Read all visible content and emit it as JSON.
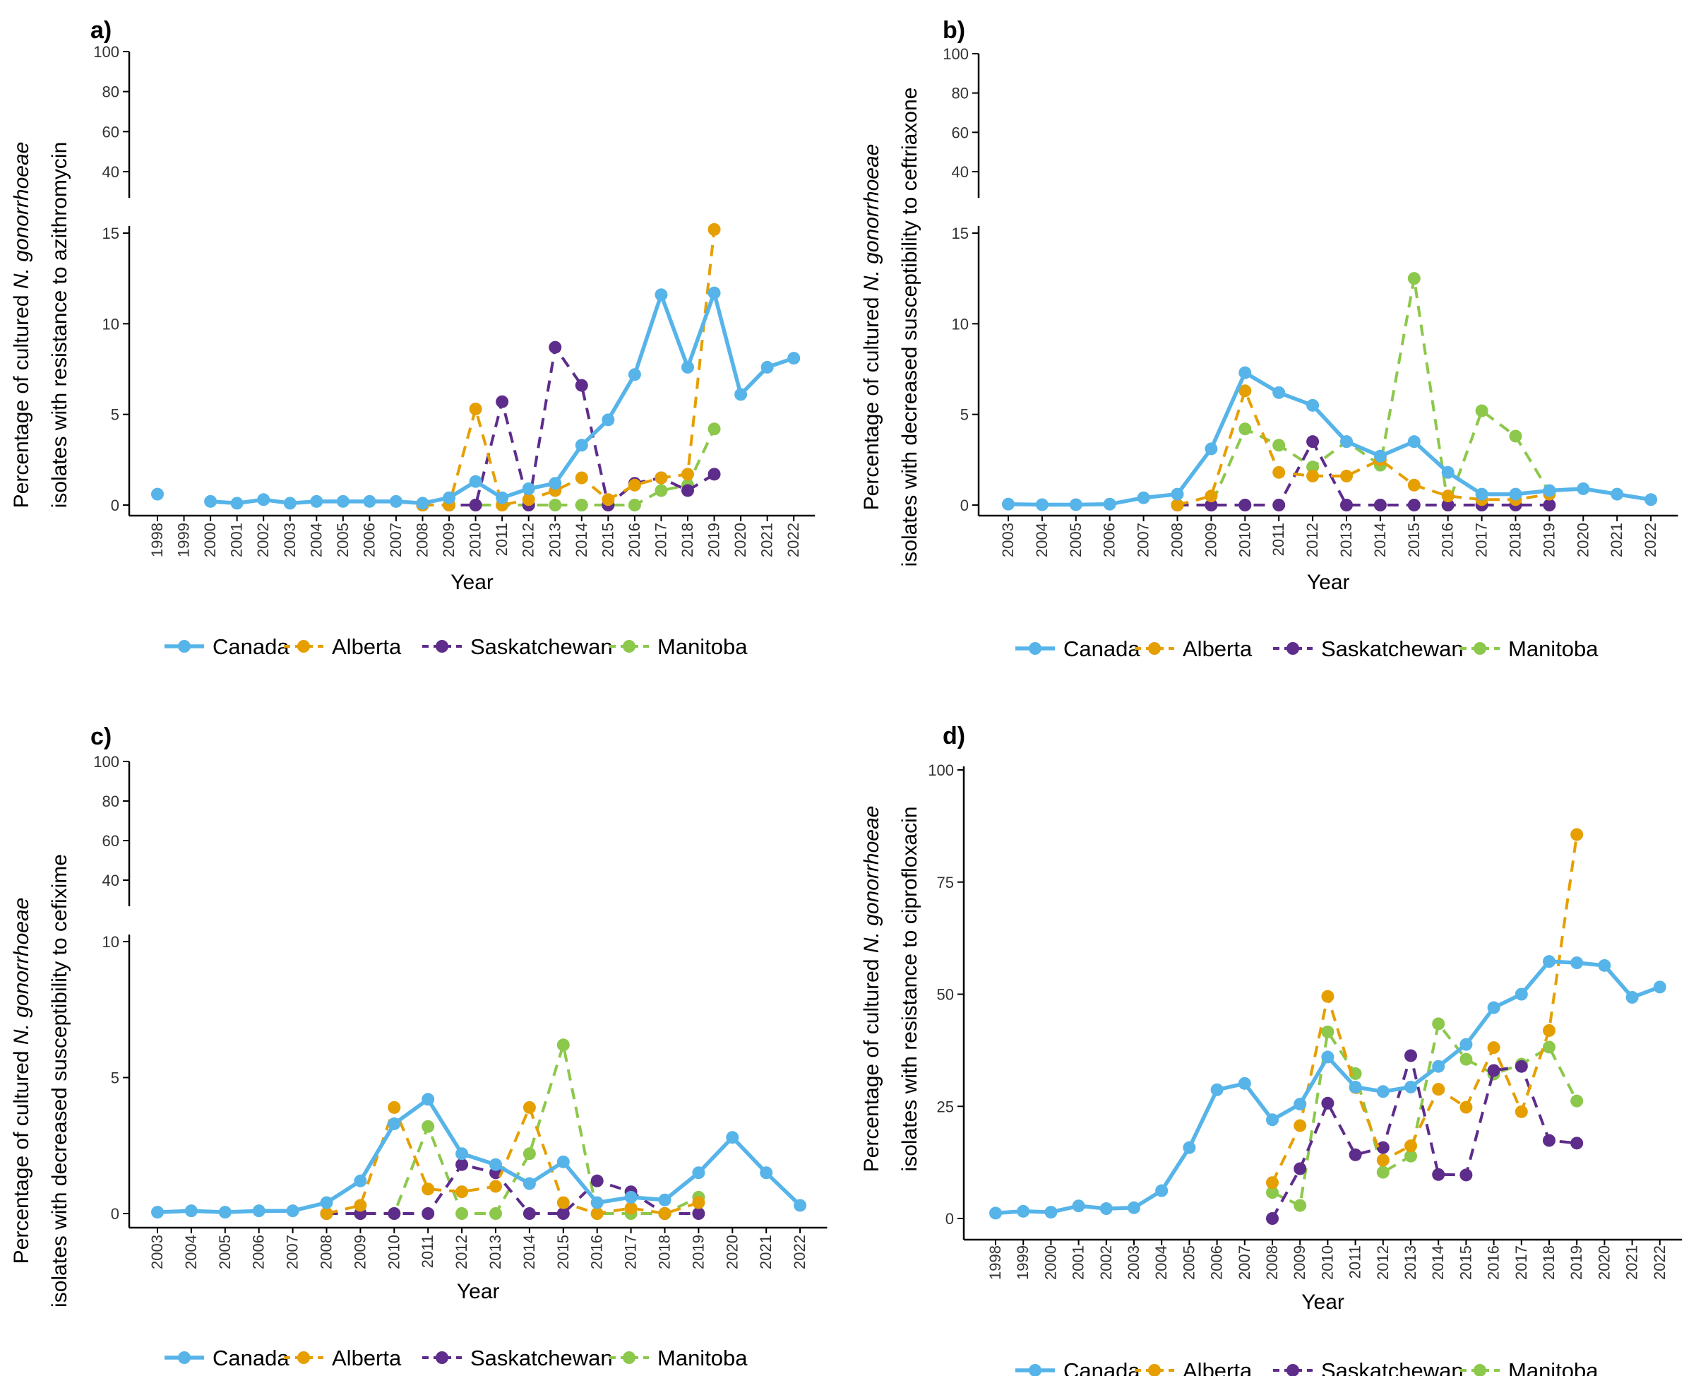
{
  "colors": {
    "Canada": "#56B4E9",
    "Alberta": "#E69F00",
    "Saskatchewan": "#5E2C8B",
    "Manitoba": "#8CC84B"
  },
  "legend": {
    "title": "",
    "entries": [
      "Canada",
      "Alberta",
      "Saskatchewan",
      "Manitoba"
    ]
  },
  "chart_data": [
    {
      "panel": "a)",
      "type": "line",
      "title": "",
      "xlabel": "Year",
      "ylabel": [
        "Percentage of cultured N. gonorrhoeae",
        "isolates with resistance to azithromycin"
      ],
      "ylabel_italic": "N. gonorrhoeae",
      "categories": [
        "1998",
        "1999",
        "2000",
        "2001",
        "2002",
        "2003",
        "2004",
        "2005",
        "2006",
        "2007",
        "2008",
        "2009",
        "2010",
        "2011",
        "2012",
        "2013",
        "2014",
        "2015",
        "2016",
        "2017",
        "2018",
        "2019",
        "2020",
        "2021",
        "2022"
      ],
      "axis_break": true,
      "ylim_lower": [
        0,
        15
      ],
      "yticks_lower": [
        "0",
        "5",
        "10",
        "15"
      ],
      "ylim_upper": [
        40,
        100
      ],
      "yticks_upper": [
        "40",
        "60",
        "80",
        "100"
      ],
      "series": [
        {
          "name": "Canada",
          "style": "solid",
          "values": [
            0.6,
            null,
            0.2,
            0.1,
            0.3,
            0.1,
            0.2,
            0.2,
            0.2,
            0.2,
            0.1,
            0.4,
            1.3,
            0.4,
            0.9,
            1.2,
            3.3,
            4.7,
            7.2,
            11.6,
            7.6,
            11.7,
            6.1,
            7.6,
            8.1
          ]
        },
        {
          "name": "Alberta",
          "style": "dashed",
          "values": [
            null,
            null,
            null,
            null,
            null,
            null,
            null,
            null,
            null,
            null,
            0.0,
            0.0,
            5.3,
            0.0,
            0.3,
            0.8,
            1.5,
            0.3,
            1.1,
            1.5,
            1.7,
            15.2,
            null,
            null,
            null
          ]
        },
        {
          "name": "Saskatchewan",
          "style": "dashed",
          "values": [
            null,
            null,
            null,
            null,
            null,
            null,
            null,
            null,
            null,
            null,
            0.0,
            0.0,
            0.0,
            5.7,
            0.0,
            8.7,
            6.6,
            0.0,
            1.2,
            1.5,
            0.8,
            1.7,
            null,
            null,
            null
          ]
        },
        {
          "name": "Manitoba",
          "style": "dashed",
          "values": [
            null,
            null,
            null,
            null,
            null,
            null,
            null,
            null,
            null,
            null,
            0.0,
            0.0,
            0.0,
            0.0,
            0.0,
            0.0,
            0.0,
            0.0,
            0.0,
            0.8,
            1.1,
            4.2,
            null,
            null,
            null
          ]
        }
      ]
    },
    {
      "panel": "b)",
      "type": "line",
      "title": "",
      "xlabel": "Year",
      "ylabel": [
        "Percentage of cultured N. gonorrhoeae",
        "isolates with decreased susceptibility to ceftriaxone"
      ],
      "ylabel_italic": "N. gonorrhoeae",
      "categories": [
        "2003",
        "2004",
        "2005",
        "2006",
        "2007",
        "2008",
        "2009",
        "2010",
        "2011",
        "2012",
        "2013",
        "2014",
        "2015",
        "2016",
        "2017",
        "2018",
        "2019",
        "2020",
        "2021",
        "2022"
      ],
      "axis_break": true,
      "ylim_lower": [
        0,
        15
      ],
      "yticks_lower": [
        "0",
        "5",
        "10",
        "15"
      ],
      "ylim_upper": [
        40,
        100
      ],
      "yticks_upper": [
        "40",
        "60",
        "80",
        "100"
      ],
      "series": [
        {
          "name": "Canada",
          "style": "solid",
          "values": [
            0.05,
            0.02,
            0.02,
            0.05,
            0.4,
            0.6,
            3.1,
            7.3,
            6.2,
            5.5,
            3.5,
            2.7,
            3.5,
            1.8,
            0.6,
            0.6,
            0.8,
            0.9,
            0.6,
            0.3
          ]
        },
        {
          "name": "Alberta",
          "style": "dashed",
          "values": [
            null,
            null,
            null,
            null,
            null,
            0.0,
            0.5,
            6.3,
            1.8,
            1.6,
            1.6,
            2.5,
            1.1,
            0.5,
            0.3,
            0.3,
            0.6,
            null,
            null,
            null
          ]
        },
        {
          "name": "Saskatchewan",
          "style": "dashed",
          "values": [
            null,
            null,
            null,
            null,
            null,
            0.0,
            0.0,
            0.0,
            0.0,
            3.5,
            0.0,
            0.0,
            0.0,
            0.0,
            0.0,
            0.0,
            0.0,
            null,
            null,
            null
          ]
        },
        {
          "name": "Manitoba",
          "style": "dashed",
          "values": [
            null,
            null,
            null,
            null,
            null,
            0.0,
            0.0,
            4.2,
            3.3,
            2.1,
            3.5,
            2.2,
            12.5,
            0.0,
            5.2,
            3.8,
            0.7,
            null,
            null,
            null
          ]
        }
      ]
    },
    {
      "panel": "c)",
      "type": "line",
      "title": "",
      "xlabel": "Year",
      "ylabel": [
        "Percentage of cultured N. gonorrhoeae",
        "isolates with decreased susceptibility to cefixime"
      ],
      "ylabel_italic": "N. gonorrhoeae",
      "categories": [
        "2003",
        "2004",
        "2005",
        "2006",
        "2007",
        "2008",
        "2009",
        "2010",
        "2011",
        "2012",
        "2013",
        "2014",
        "2015",
        "2016",
        "2017",
        "2018",
        "2019",
        "2020",
        "2021",
        "2022"
      ],
      "axis_break": true,
      "ylim_lower": [
        0,
        10
      ],
      "yticks_lower": [
        "0",
        "5",
        "10"
      ],
      "ylim_upper": [
        40,
        100
      ],
      "yticks_upper": [
        "40",
        "60",
        "80",
        "100"
      ],
      "series": [
        {
          "name": "Canada",
          "style": "solid",
          "values": [
            0.05,
            0.1,
            0.05,
            0.1,
            0.1,
            0.4,
            1.2,
            3.3,
            4.2,
            2.2,
            1.8,
            1.1,
            1.9,
            0.4,
            0.6,
            0.5,
            1.5,
            2.8,
            1.5,
            0.3
          ]
        },
        {
          "name": "Alberta",
          "style": "dashed",
          "values": [
            null,
            null,
            null,
            null,
            null,
            0.0,
            0.3,
            3.9,
            0.9,
            0.8,
            1.0,
            3.9,
            0.4,
            0.0,
            0.2,
            0.0,
            0.4,
            null,
            null,
            null
          ]
        },
        {
          "name": "Saskatchewan",
          "style": "dashed",
          "values": [
            null,
            null,
            null,
            null,
            null,
            0.0,
            0.0,
            0.0,
            0.0,
            1.8,
            1.5,
            0.0,
            0.0,
            1.2,
            0.8,
            0.0,
            0.0,
            null,
            null,
            null
          ]
        },
        {
          "name": "Manitoba",
          "style": "dashed",
          "values": [
            null,
            null,
            null,
            null,
            null,
            0.0,
            0.0,
            0.0,
            3.2,
            0.0,
            0.0,
            2.2,
            6.2,
            0.0,
            0.0,
            0.0,
            0.6,
            null,
            null,
            null
          ]
        }
      ]
    },
    {
      "panel": "d)",
      "type": "line",
      "title": "",
      "xlabel": "Year",
      "ylabel": [
        "Percentage of cultured N. gonorrhoeae",
        "isolates with resistance to ciprofloxacin"
      ],
      "ylabel_italic": "N. gonorrhoeae",
      "categories": [
        "1998",
        "1999",
        "2000",
        "2001",
        "2002",
        "2003",
        "2004",
        "2005",
        "2006",
        "2007",
        "2008",
        "2009",
        "2010",
        "2011",
        "2012",
        "2013",
        "2014",
        "2015",
        "2016",
        "2017",
        "2018",
        "2019",
        "2020",
        "2021",
        "2022"
      ],
      "axis_break": false,
      "ylim": [
        0,
        100
      ],
      "yticks": [
        "0",
        "25",
        "50",
        "75",
        "100"
      ],
      "series": [
        {
          "name": "Canada",
          "style": "solid",
          "values": [
            1.2,
            1.6,
            1.4,
            2.8,
            2.2,
            2.4,
            6.2,
            15.8,
            28.7,
            30.1,
            22.0,
            25.5,
            36.0,
            29.3,
            28.3,
            29.3,
            33.9,
            38.8,
            47.0,
            50.0,
            57.3,
            57.0,
            56.4,
            49.3,
            51.6
          ]
        },
        {
          "name": "Alberta",
          "style": "dashed",
          "values": [
            null,
            null,
            null,
            null,
            null,
            null,
            null,
            null,
            null,
            null,
            8.0,
            20.7,
            49.5,
            29.2,
            13.0,
            16.2,
            28.8,
            24.8,
            38.1,
            23.8,
            41.9,
            85.6,
            null,
            null,
            null
          ]
        },
        {
          "name": "Saskatchewan",
          "style": "dashed",
          "values": [
            null,
            null,
            null,
            null,
            null,
            null,
            null,
            null,
            null,
            null,
            0.0,
            11.1,
            25.7,
            14.2,
            15.8,
            36.3,
            9.8,
            9.7,
            33.0,
            33.9,
            17.4,
            16.8,
            null,
            null,
            null
          ]
        },
        {
          "name": "Manitoba",
          "style": "dashed",
          "values": [
            null,
            null,
            null,
            null,
            null,
            null,
            null,
            null,
            null,
            null,
            5.8,
            2.9,
            41.6,
            32.3,
            10.3,
            13.9,
            43.4,
            35.5,
            32.2,
            34.4,
            38.2,
            26.2,
            null,
            null,
            null
          ]
        }
      ]
    }
  ]
}
